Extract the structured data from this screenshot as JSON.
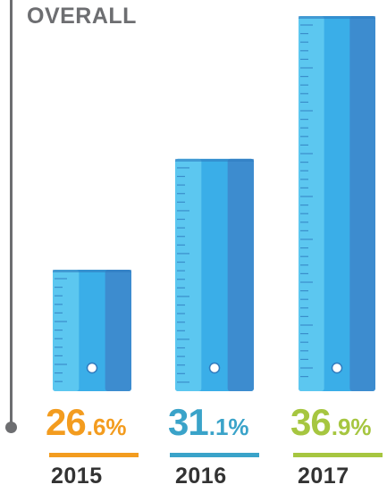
{
  "chart_data": {
    "type": "bar",
    "title": "OVERALL",
    "categories": [
      "2015",
      "2016",
      "2017"
    ],
    "values": [
      26.6,
      31.1,
      36.9
    ],
    "value_labels": [
      {
        "main": "26.6",
        "unit": "%"
      },
      {
        "main": "31.1",
        "unit": "%"
      },
      {
        "main": "36.9",
        "unit": "%"
      }
    ],
    "colors": {
      "label_2015": "#f39c1f",
      "label_2016": "#3aa3c9",
      "label_2017": "#a6c640",
      "bar_light": "#5cc7f0",
      "bar_mid": "#3aaee8",
      "bar_dark": "#3d8ccf",
      "axis": "#6d6e71"
    },
    "style": "ruler-bars"
  }
}
